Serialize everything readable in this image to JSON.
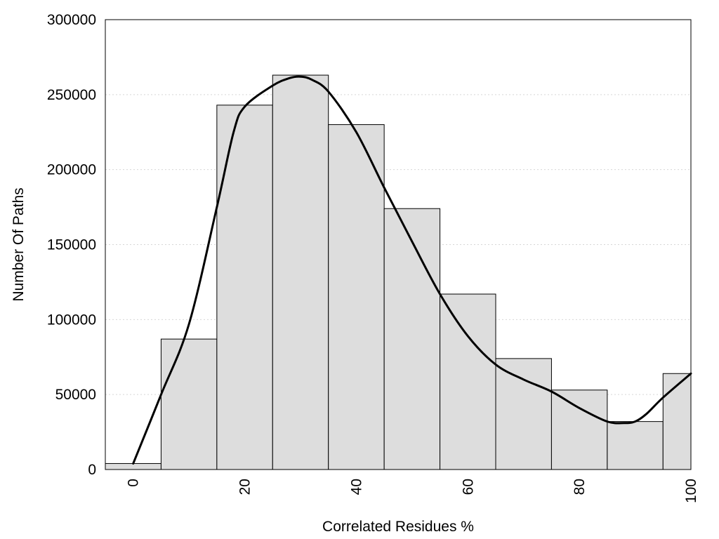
{
  "chart_data": {
    "type": "bar",
    "xlabel": "Correlated Residues %",
    "ylabel": "Number Of Paths",
    "xlim": [
      -5,
      100
    ],
    "ylim": [
      0,
      300000
    ],
    "x_ticks": [
      "0",
      "20",
      "40",
      "60",
      "80",
      "100"
    ],
    "y_ticks": [
      "0",
      "50000",
      "100000",
      "150000",
      "200000",
      "250000",
      "300000"
    ],
    "grid": "horizontal dotted",
    "bar_color": "#dddddd",
    "bins": [
      {
        "start": -5,
        "end": 5,
        "value": 4000
      },
      {
        "start": 5,
        "end": 15,
        "value": 87000
      },
      {
        "start": 15,
        "end": 25,
        "value": 243000
      },
      {
        "start": 25,
        "end": 35,
        "value": 263000
      },
      {
        "start": 35,
        "end": 45,
        "value": 230000
      },
      {
        "start": 45,
        "end": 55,
        "value": 174000
      },
      {
        "start": 55,
        "end": 65,
        "value": 117000
      },
      {
        "start": 65,
        "end": 75,
        "value": 74000
      },
      {
        "start": 75,
        "end": 85,
        "value": 53000
      },
      {
        "start": 85,
        "end": 95,
        "value": 32000
      },
      {
        "start": 95,
        "end": 100,
        "value": 64000
      }
    ],
    "curve": {
      "x": [
        0,
        5,
        10,
        15,
        18,
        20,
        25,
        28,
        30,
        32,
        35,
        40,
        45,
        50,
        55,
        60,
        65,
        70,
        75,
        80,
        85,
        88,
        90,
        92,
        95,
        100
      ],
      "y": [
        4000,
        50000,
        97000,
        175000,
        225000,
        242000,
        256000,
        261000,
        262000,
        260000,
        252000,
        225000,
        188000,
        152000,
        117000,
        89000,
        70000,
        60000,
        52000,
        41000,
        32000,
        31000,
        32000,
        37000,
        48000,
        64000
      ]
    }
  }
}
